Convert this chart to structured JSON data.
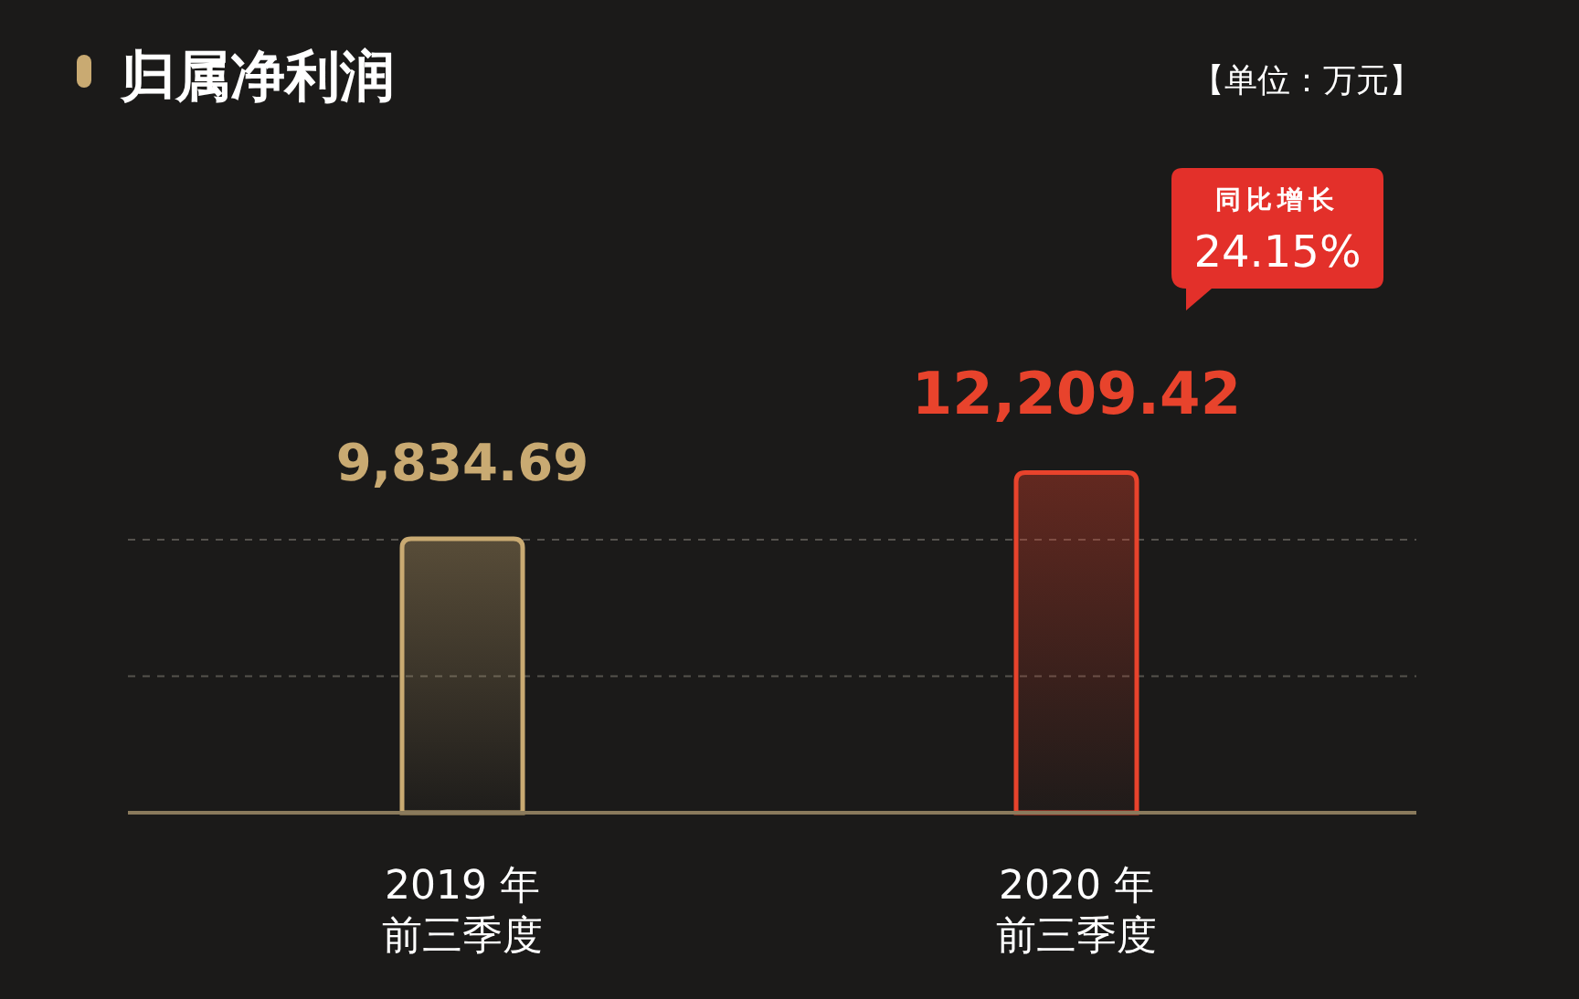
{
  "chart_data": {
    "type": "bar",
    "title": "归属净利润",
    "subtitle": "【单位：万元】",
    "categories": [
      "2019 年前三季度",
      "2020 年前三季度"
    ],
    "values": [
      9834.69,
      12209.42
    ],
    "value_labels": [
      "9,834.69",
      "12,209.42"
    ],
    "colors": [
      "#c9aa72",
      "#e8432c"
    ],
    "tick_labels": "x",
    "ref_lines": [
      {
        "axis": "y",
        "value": 4900,
        "color": "#55524d",
        "line_style": "dashed"
      },
      {
        "axis": "y",
        "value": 9800,
        "color": "#55524d",
        "line_style": "dashed"
      }
    ],
    "annotations": [
      "同比增长\n24.15%"
    ]
  }
}
